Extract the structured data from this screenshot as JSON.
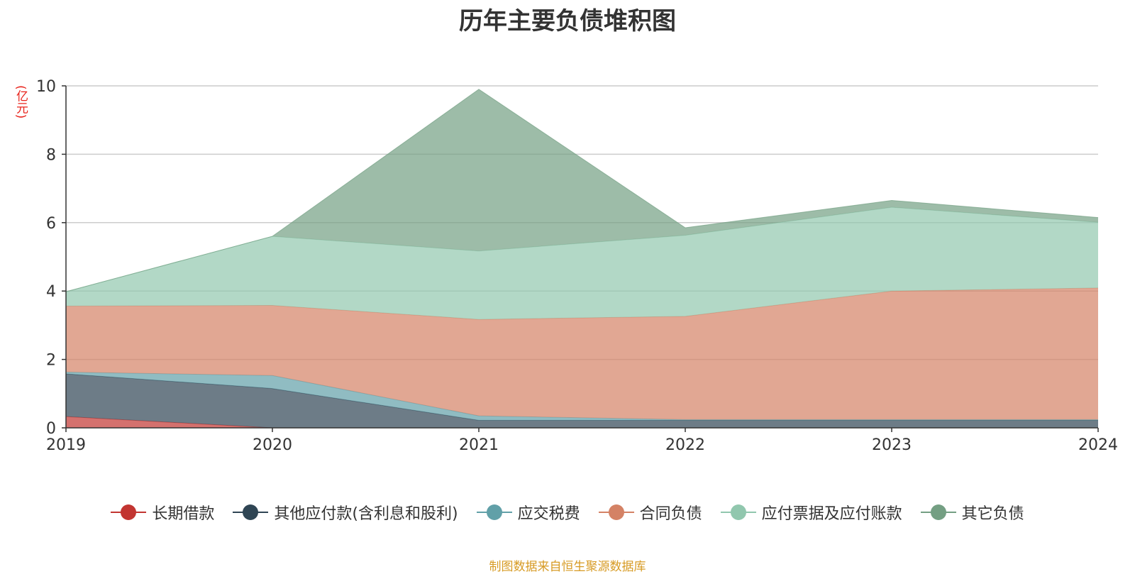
{
  "chart_data": {
    "type": "area",
    "stacked": true,
    "title": "历年主要负债堆积图",
    "unit_label": "(亿元)",
    "x": [
      "2019",
      "2020",
      "2021",
      "2022",
      "2023",
      "2024"
    ],
    "ylim": [
      0,
      10
    ],
    "y_ticks": [
      "0",
      "2",
      "4",
      "6",
      "8",
      "10"
    ],
    "grid": true,
    "legend_position": "bottom",
    "series": [
      {
        "name": "长期借款",
        "color": "#c23531",
        "values": [
          0.33,
          0.0,
          0.0,
          0.0,
          0.0,
          0.0
        ]
      },
      {
        "name": "其他应付款(含利息和股利)",
        "color": "#2f4554",
        "values": [
          1.25,
          1.15,
          0.22,
          0.22,
          0.22,
          0.22
        ]
      },
      {
        "name": "应交税费",
        "color": "#61a0a8",
        "values": [
          0.05,
          0.38,
          0.13,
          0.02,
          0.02,
          0.02
        ]
      },
      {
        "name": "合同负债",
        "color": "#d48265",
        "values": [
          1.93,
          2.05,
          2.82,
          3.02,
          3.76,
          3.85
        ]
      },
      {
        "name": "应付票据及应付账款",
        "color": "#91c7ae",
        "values": [
          0.42,
          2.02,
          2.0,
          2.37,
          2.45,
          1.92
        ]
      },
      {
        "name": "其它负债",
        "color": "#749f83",
        "values": [
          0.0,
          0.0,
          4.73,
          0.22,
          0.2,
          0.14
        ]
      }
    ]
  },
  "footer": {
    "source": "制图数据来自恒生聚源数据库"
  }
}
